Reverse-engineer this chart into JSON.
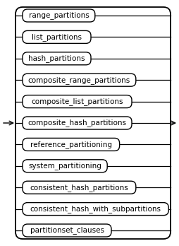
{
  "items": [
    "range_partitions",
    "list_partitions",
    "hash_partitions",
    "composite_range_partitions",
    "composite_list_partitions",
    "composite_hash_partitions",
    "reference_partitioning",
    "system_partitioning",
    "consistent_hash_partitions",
    "consistent_hash_with_subpartitions",
    "partitionset_clauses"
  ],
  "arrow_row_idx": 5,
  "bg_color": "#ffffff",
  "box_facecolor": "#ffffff",
  "line_color": "#000000",
  "text_color": "#000000",
  "font_size": 7.5,
  "fig_width": 2.54,
  "fig_height": 3.48,
  "dpi": 100
}
